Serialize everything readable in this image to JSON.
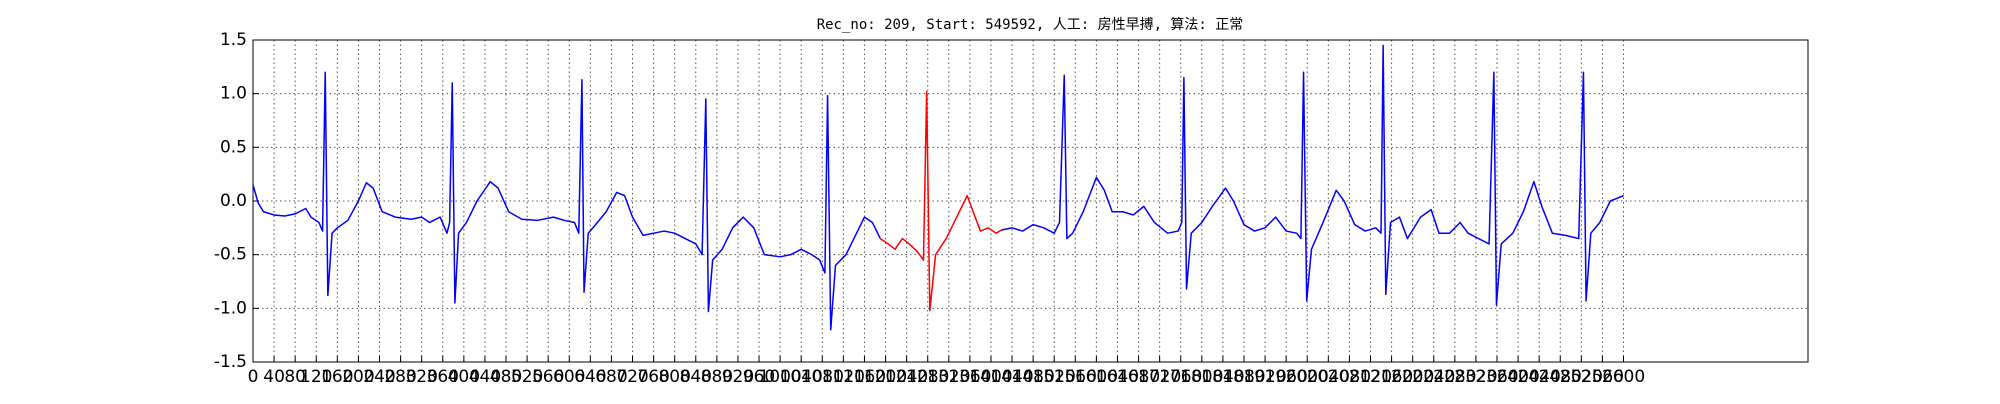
{
  "chart_data": {
    "type": "line",
    "title": "Rec_no: 209, Start: 549592, 人工: 房性早搏, 算法: 正常",
    "xlim": [
      0,
      2950
    ],
    "xticks": [
      0,
      40,
      80,
      120,
      160,
      200,
      240,
      280,
      320,
      360,
      400,
      440,
      480,
      520,
      560,
      600,
      640,
      680,
      720,
      760,
      800,
      840,
      880,
      920,
      960,
      1000,
      1040,
      1080,
      1120,
      1160,
      1200,
      1240,
      1280,
      1320,
      1360,
      1400,
      1440,
      1480,
      1520,
      1560,
      1600,
      1640,
      1680,
      1720,
      1760,
      1800,
      1840,
      1880,
      1920,
      1960,
      2000,
      2040,
      2080,
      2120,
      2160,
      2200,
      2240,
      2280,
      2320,
      2360,
      2400,
      2440,
      2480,
      2520,
      2560,
      2600
    ],
    "ylim": [
      -1.5,
      1.5
    ],
    "yticks": [
      -1.5,
      {
        "value": -1.0,
        "label": "-1.0"
      },
      -0.5,
      {
        "value": 0.0,
        "label": "0.0"
      },
      0.5,
      {
        "value": 1.0,
        "label": "1.0"
      },
      1.5
    ],
    "grid": true,
    "series": [
      {
        "color": "#0000ff",
        "x": [
          0,
          10,
          20,
          40,
          60,
          80,
          100,
          110,
          125,
          132,
          137,
          142,
          150,
          160,
          180,
          200,
          215,
          228,
          245,
          270,
          300,
          320,
          335,
          355,
          368,
          373,
          378,
          383,
          390,
          405,
          425,
          450,
          465,
          485,
          510,
          540,
          570,
          590,
          610,
          618,
          624,
          628,
          636,
          650,
          670,
          690,
          705,
          720,
          740,
          760,
          780,
          800,
          820,
          840,
          852,
          859,
          864,
          872,
          890,
          910,
          930,
          950,
          970,
          1000,
          1020,
          1040,
          1060,
          1075,
          1085,
          1090,
          1096,
          1105,
          1125,
          1145,
          1160,
          1175,
          1190
        ],
        "values": [
          0.15,
          -0.02,
          -0.1,
          -0.13,
          -0.14,
          -0.12,
          -0.07,
          -0.15,
          -0.2,
          -0.28,
          1.2,
          -0.88,
          -0.3,
          -0.25,
          -0.18,
          0.0,
          0.17,
          0.12,
          -0.1,
          -0.15,
          -0.17,
          -0.15,
          -0.2,
          -0.15,
          -0.3,
          -0.2,
          1.1,
          -0.95,
          -0.3,
          -0.2,
          0.0,
          0.18,
          0.12,
          -0.1,
          -0.17,
          -0.18,
          -0.15,
          -0.18,
          -0.2,
          -0.3,
          1.13,
          -0.85,
          -0.3,
          -0.22,
          -0.1,
          0.08,
          0.05,
          -0.15,
          -0.32,
          -0.3,
          -0.28,
          -0.3,
          -0.35,
          -0.4,
          -0.5,
          0.95,
          -1.03,
          -0.55,
          -0.45,
          -0.25,
          -0.15,
          -0.25,
          -0.5,
          -0.52,
          -0.5,
          -0.45,
          -0.5,
          -0.55,
          -0.67,
          0.98,
          -1.2,
          -0.6,
          -0.5,
          -0.3,
          -0.15,
          -0.2,
          -0.35
        ]
      },
      {
        "color": "#ff0000",
        "x": [
          1190,
          1205,
          1218,
          1232,
          1245,
          1260,
          1272,
          1278,
          1284,
          1295,
          1315,
          1335,
          1355,
          1370,
          1380,
          1395,
          1410,
          1420
        ],
        "values": [
          -0.35,
          -0.4,
          -0.45,
          -0.35,
          -0.4,
          -0.47,
          -0.55,
          1.02,
          -1.02,
          -0.5,
          -0.35,
          -0.15,
          0.05,
          -0.15,
          -0.28,
          -0.25,
          -0.3,
          -0.27
        ]
      },
      {
        "color": "#0000ff",
        "x": [
          1420,
          1440,
          1460,
          1480,
          1500,
          1520,
          1530,
          1539,
          1544,
          1555,
          1575,
          1600,
          1615,
          1630,
          1650,
          1670,
          1690,
          1710,
          1735,
          1755,
          1762,
          1766,
          1771,
          1780,
          1800,
          1820,
          1845,
          1860,
          1880,
          1900,
          1920,
          1940,
          1960,
          1980,
          1988,
          1993,
          1999,
          2008,
          2030,
          2055,
          2070,
          2090,
          2110,
          2130,
          2140,
          2144,
          2149,
          2158,
          2175,
          2190,
          2215,
          2235,
          2250,
          2270,
          2290,
          2305,
          2325,
          2345,
          2354,
          2359,
          2368,
          2390,
          2410,
          2430,
          2445,
          2465,
          2490,
          2515,
          2524,
          2529,
          2538,
          2555,
          2575,
          2590,
          2600
        ],
        "values": [
          -0.27,
          -0.25,
          -0.28,
          -0.22,
          -0.25,
          -0.3,
          -0.2,
          1.17,
          -0.35,
          -0.3,
          -0.1,
          0.22,
          0.1,
          -0.1,
          -0.1,
          -0.13,
          -0.05,
          -0.2,
          -0.3,
          -0.28,
          -0.2,
          1.15,
          -0.82,
          -0.3,
          -0.2,
          -0.05,
          0.12,
          0.0,
          -0.22,
          -0.28,
          -0.25,
          -0.15,
          -0.28,
          -0.3,
          -0.35,
          1.2,
          -0.93,
          -0.45,
          -0.2,
          0.1,
          0.0,
          -0.22,
          -0.28,
          -0.25,
          -0.3,
          1.45,
          -0.87,
          -0.2,
          -0.15,
          -0.35,
          -0.15,
          -0.08,
          -0.3,
          -0.3,
          -0.2,
          -0.3,
          -0.35,
          -0.4,
          1.2,
          -0.97,
          -0.4,
          -0.3,
          -0.1,
          0.18,
          -0.05,
          -0.3,
          -0.32,
          -0.35,
          1.2,
          -0.93,
          -0.3,
          -0.2,
          0.0,
          0.03,
          0.05
        ]
      }
    ]
  }
}
